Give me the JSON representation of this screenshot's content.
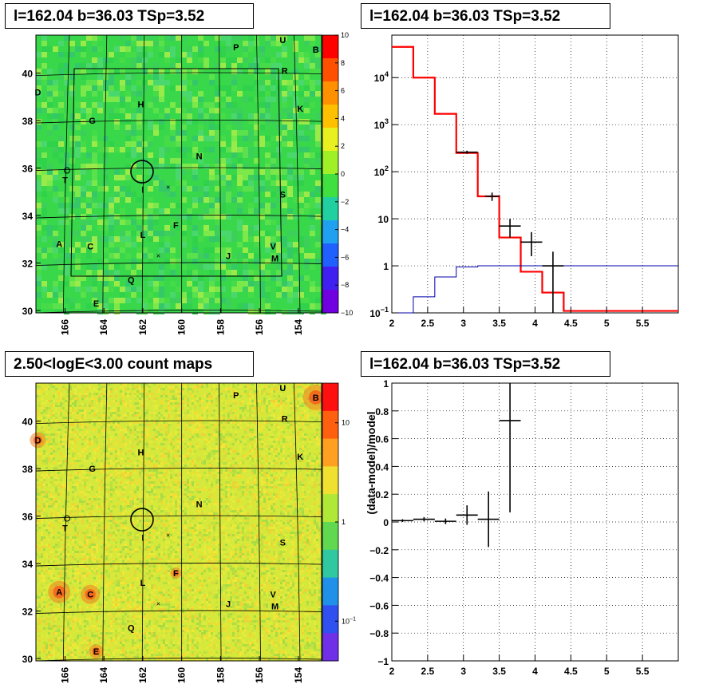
{
  "chart_data": [
    {
      "type": "heatmap",
      "title": "l=162.04 b=36.03 TSp=3.52",
      "xlim": [
        167.5,
        152.8
      ],
      "ylim": [
        29.9,
        41.6
      ],
      "x_ticks": [
        "166",
        "164",
        "162",
        "160",
        "158",
        "156",
        "154"
      ],
      "y_ticks": [
        "30",
        "32",
        "34",
        "36",
        "38",
        "40"
      ],
      "colorbar": {
        "min": -10,
        "max": 10,
        "ticks": [
          "10",
          "8",
          "6",
          "4",
          "2",
          "0",
          "−2",
          "−4",
          "−6",
          "−8",
          "−10"
        ]
      },
      "colors": {
        "background": "#38d84a",
        "accent": "#ff0000"
      },
      "labels": [
        {
          "t": "P",
          "x": 157.2,
          "y": 41.1
        },
        {
          "t": "U",
          "x": 154.8,
          "y": 41.4
        },
        {
          "t": "B",
          "x": 153.1,
          "y": 41.0
        },
        {
          "t": "R",
          "x": 154.7,
          "y": 40.1
        },
        {
          "t": "D",
          "x": 167.4,
          "y": 39.2
        },
        {
          "t": "K",
          "x": 153.9,
          "y": 38.5
        },
        {
          "t": "H",
          "x": 162.1,
          "y": 38.7
        },
        {
          "t": "G",
          "x": 164.6,
          "y": 38.0
        },
        {
          "t": "N",
          "x": 159.1,
          "y": 36.5
        },
        {
          "t": "T",
          "x": 166.0,
          "y": 35.5
        },
        {
          "t": "I",
          "x": 162.0,
          "y": 35.1
        },
        {
          "t": "S",
          "x": 154.8,
          "y": 34.9
        },
        {
          "t": "F",
          "x": 160.3,
          "y": 33.6
        },
        {
          "t": "L",
          "x": 162.0,
          "y": 33.2
        },
        {
          "t": "A",
          "x": 166.3,
          "y": 32.8
        },
        {
          "t": "C",
          "x": 164.7,
          "y": 32.7
        },
        {
          "t": "V",
          "x": 155.3,
          "y": 32.7
        },
        {
          "t": "J",
          "x": 157.6,
          "y": 32.3
        },
        {
          "t": "M",
          "x": 155.2,
          "y": 32.2
        },
        {
          "t": "Q",
          "x": 162.6,
          "y": 31.3
        },
        {
          "t": "E",
          "x": 164.4,
          "y": 30.3
        }
      ]
    },
    {
      "type": "line",
      "title": "l=162.04 b=36.03 TSp=3.52",
      "x_scale": "linear",
      "y_scale": "log",
      "xlim": [
        2,
        6
      ],
      "ylim": [
        0.1,
        80000
      ],
      "x_ticks": [
        "2",
        "2.5",
        "3",
        "3.5",
        "4",
        "4.5",
        "5",
        "5.5"
      ],
      "y_ticks": [
        {
          "v": 0.1,
          "base": "10",
          "exp": "−1"
        },
        {
          "v": 1,
          "base": "1"
        },
        {
          "v": 10,
          "base": "10"
        },
        {
          "v": 100,
          "base": "10",
          "exp": "2"
        },
        {
          "v": 1000,
          "base": "10",
          "exp": "3"
        },
        {
          "v": 10000,
          "base": "10",
          "exp": "4"
        }
      ],
      "series": [
        {
          "color": "#ff0000",
          "edges": [
            2,
            2.3,
            2.6,
            2.9,
            3.2,
            3.5,
            3.8,
            4.1,
            4.4,
            6
          ],
          "values": [
            45000,
            10000,
            1700,
            250,
            30,
            4,
            0.75,
            0.27,
            0.11
          ]
        },
        {
          "color": "#0000aa",
          "edges": [
            2,
            2.3,
            2.6,
            2.9,
            3.2,
            6
          ],
          "values": [
            0.05,
            0.22,
            0.58,
            0.95,
            1.0
          ]
        },
        {
          "color": "#000000",
          "points": [
            {
              "x": 3.05,
              "y": 260,
              "xerr": 0.15,
              "ylo": 240,
              "yhi": 280
            },
            {
              "x": 3.4,
              "y": 30,
              "xerr": 0.1,
              "ylo": 24,
              "yhi": 36
            },
            {
              "x": 3.65,
              "y": 7,
              "xerr": 0.15,
              "ylo": 4,
              "yhi": 10
            },
            {
              "x": 3.95,
              "y": 3.2,
              "xerr": 0.15,
              "ylo": 1.6,
              "yhi": 5.2
            },
            {
              "x": 4.25,
              "y": 1.0,
              "xerr": 0.15,
              "ylo": 0.08,
              "yhi": 2
            }
          ]
        }
      ]
    },
    {
      "type": "heatmap",
      "title": "2.50<logE<3.00 count maps",
      "xlim": [
        167.5,
        152.8
      ],
      "ylim": [
        29.9,
        41.6
      ],
      "x_ticks": [
        "166",
        "164",
        "162",
        "160",
        "158",
        "156",
        "154"
      ],
      "y_ticks": [
        "30",
        "32",
        "34",
        "36",
        "38",
        "40"
      ],
      "colorbar": {
        "scale": "log",
        "ticks": [
          {
            "v": 10,
            "base": "10"
          },
          {
            "v": 1,
            "base": "1"
          },
          {
            "v": 0.1,
            "base": "10",
            "exp": "−1"
          }
        ]
      },
      "colors": {
        "background": "#d6e83a",
        "accent": "#ff3000"
      },
      "labels": [
        {
          "t": "P",
          "x": 157.2,
          "y": 41.1
        },
        {
          "t": "U",
          "x": 154.8,
          "y": 41.4
        },
        {
          "t": "B",
          "x": 153.1,
          "y": 41.0
        },
        {
          "t": "R",
          "x": 154.7,
          "y": 40.1
        },
        {
          "t": "D",
          "x": 167.4,
          "y": 39.2
        },
        {
          "t": "K",
          "x": 153.9,
          "y": 38.5
        },
        {
          "t": "H",
          "x": 162.1,
          "y": 38.7
        },
        {
          "t": "G",
          "x": 164.6,
          "y": 38.0
        },
        {
          "t": "N",
          "x": 159.1,
          "y": 36.5
        },
        {
          "t": "T",
          "x": 166.0,
          "y": 35.5
        },
        {
          "t": "I",
          "x": 162.0,
          "y": 35.1
        },
        {
          "t": "S",
          "x": 154.8,
          "y": 34.9
        },
        {
          "t": "F",
          "x": 160.3,
          "y": 33.6
        },
        {
          "t": "L",
          "x": 162.0,
          "y": 33.2
        },
        {
          "t": "A",
          "x": 166.3,
          "y": 32.8
        },
        {
          "t": "C",
          "x": 164.7,
          "y": 32.7
        },
        {
          "t": "V",
          "x": 155.3,
          "y": 32.7
        },
        {
          "t": "J",
          "x": 157.6,
          "y": 32.3
        },
        {
          "t": "M",
          "x": 155.2,
          "y": 32.2
        },
        {
          "t": "Q",
          "x": 162.6,
          "y": 31.3
        },
        {
          "t": "E",
          "x": 164.4,
          "y": 30.3
        }
      ]
    },
    {
      "type": "scatter",
      "title": "l=162.04 b=36.03 TSp=3.52",
      "ylabel": "(data-model)/model",
      "xlim": [
        2,
        6
      ],
      "ylim": [
        -1,
        1
      ],
      "x_ticks": [
        "2",
        "2.5",
        "3",
        "3.5",
        "4",
        "4.5",
        "5",
        "5.5"
      ],
      "y_ticks": [
        "1",
        "0.8",
        "0.6",
        "0.4",
        "0.2",
        "0",
        "−0.2",
        "−0.4",
        "−0.6",
        "−0.8",
        "−1"
      ],
      "points": [
        {
          "x": 2.15,
          "y": 0.01,
          "xerr": 0.15,
          "yerr": 0.01
        },
        {
          "x": 2.45,
          "y": 0.02,
          "xerr": 0.15,
          "yerr": 0.015
        },
        {
          "x": 2.75,
          "y": 0.005,
          "xerr": 0.15,
          "yerr": 0.02
        },
        {
          "x": 3.05,
          "y": 0.05,
          "xerr": 0.15,
          "yerr": 0.07
        },
        {
          "x": 3.35,
          "y": 0.02,
          "xerr": 0.15,
          "yerr": 0.2
        },
        {
          "x": 3.65,
          "y": 0.73,
          "xerr": 0.15,
          "yerr": 0.66
        }
      ]
    }
  ]
}
